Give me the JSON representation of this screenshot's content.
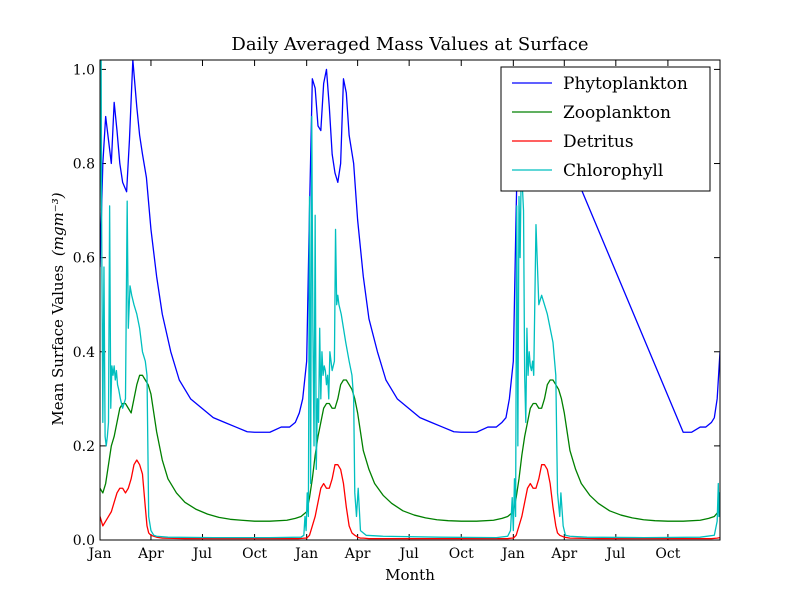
{
  "chart_data": {
    "type": "line",
    "title": "Daily Averaged Mass Values at Surface",
    "xlabel": "Month",
    "ylabel": "Mean Surface Values",
    "ylabel_unit": "(mgm⁻³)",
    "xlim": [
      0,
      1095
    ],
    "ylim": [
      0,
      1.02
    ],
    "grid": false,
    "legend_position": "top-right",
    "x_ticks": [
      {
        "x": 0,
        "label": "Jan"
      },
      {
        "x": 90,
        "label": "Apr"
      },
      {
        "x": 181,
        "label": "Jul"
      },
      {
        "x": 273,
        "label": "Oct"
      },
      {
        "x": 365,
        "label": "Jan"
      },
      {
        "x": 455,
        "label": "Apr"
      },
      {
        "x": 546,
        "label": "Jul"
      },
      {
        "x": 638,
        "label": "Oct"
      },
      {
        "x": 730,
        "label": "Jan"
      },
      {
        "x": 820,
        "label": "Apr"
      },
      {
        "x": 911,
        "label": "Jul"
      },
      {
        "x": 1003,
        "label": "Oct"
      }
    ],
    "y_ticks": [
      {
        "y": 0.0,
        "label": "0.0"
      },
      {
        "y": 0.2,
        "label": "0.2"
      },
      {
        "y": 0.4,
        "label": "0.4"
      },
      {
        "y": 0.6,
        "label": "0.6"
      },
      {
        "y": 0.8,
        "label": "0.8"
      },
      {
        "y": 1.0,
        "label": "1.0"
      }
    ],
    "series": [
      {
        "name": "Phytoplankton",
        "color": "#0000ff",
        "x": [
          0,
          5,
          10,
          15,
          20,
          25,
          30,
          35,
          40,
          47,
          52,
          58,
          65,
          70,
          75,
          82,
          90,
          100,
          110,
          125,
          140,
          160,
          180,
          200,
          220,
          240,
          260,
          273,
          285,
          300,
          320,
          335,
          345,
          352,
          358,
          365,
          370,
          375,
          380,
          385,
          390,
          395,
          400,
          405,
          410,
          415,
          420,
          425,
          430,
          435,
          440,
          448,
          455,
          465,
          475,
          490,
          505,
          525,
          545,
          565,
          585,
          605,
          625,
          638,
          650,
          665,
          685,
          700,
          710,
          717,
          723,
          730,
          735,
          740,
          745,
          750,
          755,
          760,
          765,
          770,
          775,
          780,
          785,
          790,
          795,
          800,
          810,
          1030,
          1045,
          1060,
          1070,
          1080,
          1085,
          1090,
          1095
        ],
        "y": [
          0.58,
          0.8,
          0.9,
          0.85,
          0.8,
          0.93,
          0.87,
          0.8,
          0.76,
          0.74,
          0.85,
          1.02,
          0.92,
          0.86,
          0.82,
          0.77,
          0.66,
          0.56,
          0.48,
          0.4,
          0.34,
          0.3,
          0.28,
          0.26,
          0.25,
          0.24,
          0.23,
          0.229,
          0.229,
          0.229,
          0.24,
          0.24,
          0.25,
          0.27,
          0.3,
          0.38,
          0.7,
          0.98,
          0.96,
          0.88,
          0.87,
          0.97,
          1.0,
          0.92,
          0.82,
          0.78,
          0.76,
          0.8,
          0.98,
          0.95,
          0.86,
          0.8,
          0.68,
          0.56,
          0.47,
          0.4,
          0.34,
          0.3,
          0.28,
          0.26,
          0.25,
          0.24,
          0.23,
          0.229,
          0.229,
          0.229,
          0.24,
          0.24,
          0.25,
          0.26,
          0.3,
          0.38,
          0.7,
          0.98,
          0.97,
          0.88,
          0.87,
          0.97,
          1.0,
          0.92,
          0.82,
          0.78,
          0.76,
          0.8,
          0.98,
          0.95,
          0.86,
          0.229,
          0.229,
          0.24,
          0.24,
          0.25,
          0.26,
          0.3,
          0.4
        ]
      },
      {
        "name": "Zooplankton",
        "color": "#008000",
        "x": [
          0,
          5,
          10,
          15,
          20,
          25,
          30,
          35,
          40,
          45,
          50,
          55,
          60,
          65,
          70,
          75,
          80,
          85,
          90,
          95,
          100,
          110,
          120,
          135,
          150,
          170,
          190,
          210,
          230,
          250,
          273,
          300,
          330,
          345,
          355,
          365,
          370,
          375,
          380,
          385,
          390,
          395,
          400,
          405,
          410,
          415,
          420,
          425,
          430,
          435,
          440,
          445,
          450,
          455,
          460,
          465,
          475,
          485,
          500,
          515,
          535,
          555,
          575,
          595,
          615,
          638,
          665,
          695,
          710,
          720,
          730,
          735,
          740,
          745,
          750,
          755,
          760,
          765,
          770,
          775,
          780,
          785,
          790,
          795,
          800,
          805,
          810,
          815,
          820,
          825,
          830,
          840,
          850,
          865,
          880,
          900,
          920,
          940,
          960,
          980,
          1003,
          1030,
          1060,
          1075,
          1085,
          1092,
          1095
        ],
        "y": [
          0.11,
          0.1,
          0.12,
          0.16,
          0.2,
          0.22,
          0.25,
          0.28,
          0.29,
          0.29,
          0.28,
          0.27,
          0.3,
          0.33,
          0.35,
          0.35,
          0.34,
          0.33,
          0.31,
          0.27,
          0.23,
          0.17,
          0.13,
          0.1,
          0.08,
          0.065,
          0.055,
          0.048,
          0.044,
          0.042,
          0.04,
          0.04,
          0.042,
          0.046,
          0.05,
          0.06,
          0.09,
          0.13,
          0.18,
          0.22,
          0.25,
          0.28,
          0.29,
          0.29,
          0.28,
          0.28,
          0.3,
          0.33,
          0.34,
          0.34,
          0.33,
          0.32,
          0.3,
          0.27,
          0.23,
          0.19,
          0.15,
          0.12,
          0.095,
          0.078,
          0.062,
          0.053,
          0.047,
          0.043,
          0.041,
          0.04,
          0.04,
          0.042,
          0.046,
          0.05,
          0.06,
          0.09,
          0.13,
          0.18,
          0.22,
          0.25,
          0.28,
          0.29,
          0.29,
          0.28,
          0.28,
          0.3,
          0.33,
          0.34,
          0.34,
          0.33,
          0.32,
          0.3,
          0.27,
          0.23,
          0.19,
          0.15,
          0.12,
          0.095,
          0.078,
          0.062,
          0.053,
          0.047,
          0.043,
          0.041,
          0.04,
          0.04,
          0.042,
          0.046,
          0.05,
          0.06,
          0.06
        ]
      },
      {
        "name": "Detritus",
        "color": "#ff0000",
        "x": [
          0,
          5,
          10,
          15,
          20,
          25,
          30,
          35,
          40,
          45,
          50,
          55,
          60,
          65,
          70,
          75,
          80,
          83,
          86,
          90,
          95,
          100,
          110,
          150,
          250,
          350,
          362,
          365,
          370,
          375,
          380,
          385,
          390,
          395,
          400,
          405,
          410,
          415,
          420,
          425,
          430,
          435,
          440,
          445,
          450,
          453,
          455,
          460,
          465,
          475,
          520,
          620,
          720,
          727,
          730,
          735,
          740,
          745,
          750,
          755,
          760,
          765,
          770,
          775,
          780,
          785,
          790,
          795,
          800,
          805,
          808,
          812,
          820,
          830,
          880,
          980,
          1080,
          1090,
          1095
        ],
        "y": [
          0.05,
          0.03,
          0.04,
          0.05,
          0.06,
          0.08,
          0.1,
          0.11,
          0.11,
          0.1,
          0.11,
          0.13,
          0.16,
          0.17,
          0.16,
          0.14,
          0.07,
          0.03,
          0.015,
          0.01,
          0.008,
          0.006,
          0.004,
          0.003,
          0.003,
          0.003,
          0.004,
          0.004,
          0.01,
          0.03,
          0.05,
          0.08,
          0.11,
          0.12,
          0.11,
          0.11,
          0.13,
          0.16,
          0.16,
          0.15,
          0.12,
          0.07,
          0.03,
          0.015,
          0.01,
          0.008,
          0.006,
          0.004,
          0.004,
          0.003,
          0.003,
          0.003,
          0.003,
          0.004,
          0.004,
          0.01,
          0.03,
          0.05,
          0.08,
          0.11,
          0.12,
          0.11,
          0.11,
          0.13,
          0.16,
          0.16,
          0.15,
          0.12,
          0.07,
          0.03,
          0.015,
          0.01,
          0.006,
          0.004,
          0.003,
          0.003,
          0.003,
          0.004,
          0.005
        ]
      },
      {
        "name": "Chlorophyll",
        "color": "#00bfbf",
        "x": [
          0,
          2,
          3,
          5,
          7,
          9,
          11,
          13,
          15,
          17,
          19,
          21,
          23,
          25,
          27,
          29,
          31,
          33,
          36,
          40,
          45,
          48,
          50,
          53,
          56,
          60,
          65,
          70,
          75,
          80,
          83,
          86,
          90,
          95,
          100,
          120,
          200,
          300,
          355,
          360,
          362,
          364,
          366,
          368,
          370,
          372,
          374,
          376,
          378,
          380,
          382,
          384,
          386,
          388,
          390,
          392,
          394,
          396,
          398,
          400,
          402,
          404,
          406,
          410,
          414,
          416,
          418,
          420,
          422,
          426,
          430,
          434,
          440,
          445,
          448,
          450,
          453,
          456,
          460,
          470,
          500,
          600,
          700,
          720,
          725,
          728,
          730,
          732,
          734,
          736,
          738,
          740,
          742,
          744,
          746,
          748,
          750,
          752,
          754,
          756,
          758,
          760,
          762,
          764,
          766,
          770,
          775,
          780,
          785,
          790,
          795,
          800,
          805,
          808,
          812,
          814,
          818,
          822,
          830,
          860,
          960,
          1060,
          1085,
          1090,
          1092,
          1093,
          1094,
          1095
        ],
        "y": [
          0.7,
          1.02,
          0.65,
          0.25,
          0.58,
          0.22,
          0.2,
          0.22,
          0.25,
          0.71,
          0.28,
          0.37,
          0.35,
          0.37,
          0.34,
          0.36,
          0.33,
          0.32,
          0.3,
          0.28,
          0.3,
          0.72,
          0.45,
          0.54,
          0.52,
          0.5,
          0.48,
          0.45,
          0.4,
          0.38,
          0.35,
          0.05,
          0.02,
          0.01,
          0.008,
          0.006,
          0.005,
          0.005,
          0.006,
          0.01,
          0.05,
          0.02,
          0.1,
          0.05,
          0.73,
          0.12,
          0.9,
          0.45,
          0.2,
          0.69,
          0.15,
          0.3,
          0.25,
          0.45,
          0.3,
          0.4,
          0.35,
          0.37,
          0.36,
          0.33,
          0.35,
          0.3,
          0.4,
          0.36,
          0.38,
          0.66,
          0.5,
          0.52,
          0.5,
          0.48,
          0.45,
          0.42,
          0.38,
          0.35,
          0.3,
          0.1,
          0.05,
          0.11,
          0.02,
          0.01,
          0.008,
          0.006,
          0.005,
          0.008,
          0.02,
          0.09,
          0.02,
          0.13,
          0.05,
          0.71,
          0.2,
          0.73,
          0.6,
          0.8,
          0.75,
          0.7,
          0.35,
          0.25,
          0.45,
          0.35,
          0.4,
          0.37,
          0.36,
          0.38,
          0.35,
          0.67,
          0.5,
          0.52,
          0.5,
          0.48,
          0.45,
          0.42,
          0.35,
          0.1,
          0.05,
          0.1,
          0.03,
          0.01,
          0.008,
          0.006,
          0.005,
          0.006,
          0.01,
          0.04,
          0.12,
          0.05,
          0.1,
          0.06
        ]
      }
    ]
  }
}
